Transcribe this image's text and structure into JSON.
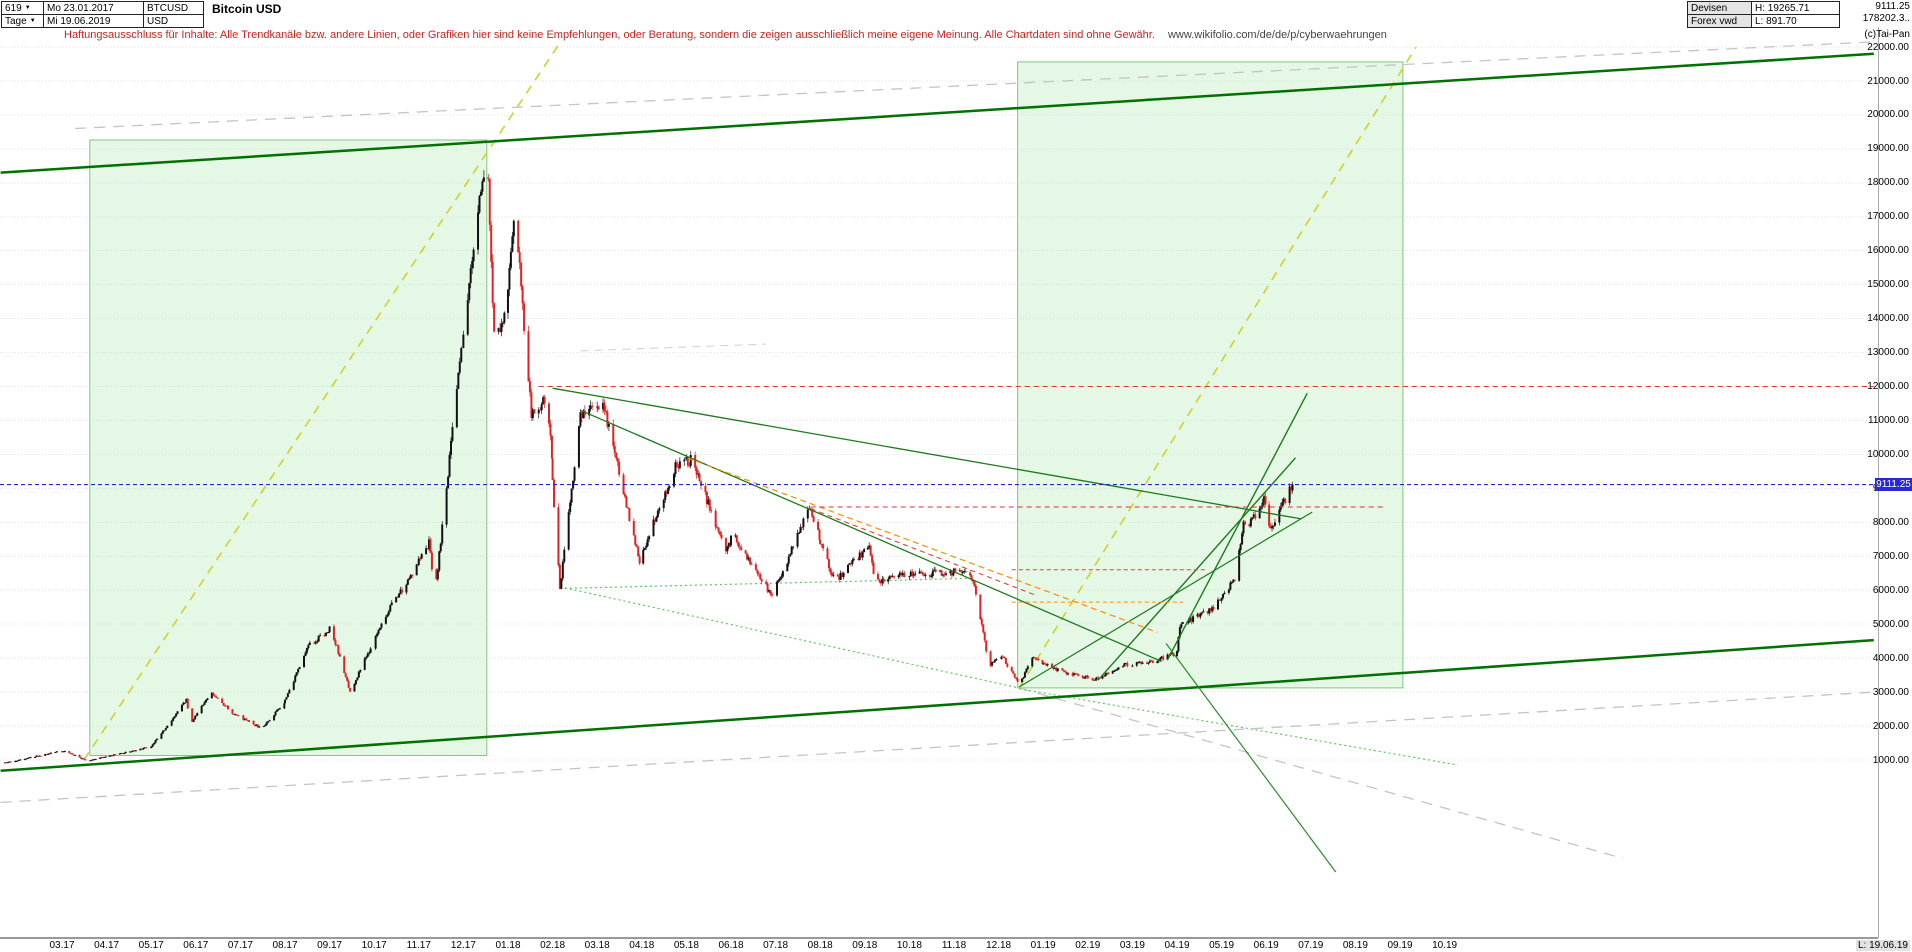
{
  "header": {
    "bars_count": "619",
    "dropdown_icon": "▼",
    "first_date": "Mo 23.01.2017",
    "period": "Tage",
    "last_date": "Mi 19.06.2019",
    "symbol": "BTCUSD",
    "currency": "USD",
    "title": "Bitcoin USD",
    "exchange": "Devisen",
    "feed": "Forex vwd",
    "high_label": "H: 19265.71",
    "low_label": "L: 891.70",
    "last_price": "9111.25",
    "second_value": "178202.3..",
    "copyright": "(c)Tai-Pan"
  },
  "disclaimer": {
    "text": "Haftungsausschluss für Inhalte: Alle Trendkanäle bzw. andere Linien, oder Grafiken hier sind keine Empfehlungen, oder Beratung, sondern die zeigen ausschließlich meine eigene Meinung. Alle Chartdaten sind ohne Gewähr.",
    "url": "www.wikifolio.com/de/de/p/cyberwaehrungen"
  },
  "axis": {
    "last_label": "L: 19.06.19"
  },
  "colors": {
    "up": "#111111",
    "down": "#e22222",
    "grid": "#e2e2e2",
    "channel": "#007000",
    "projection_dash": "#ccd42a",
    "current": "#2525cc",
    "box_fill": "rgba(170,230,170,0.30)",
    "box_stroke": "#7ec87e"
  },
  "chart_data": {
    "type": "candlestick",
    "symbol": "BTCUSD",
    "title": "Bitcoin USD",
    "period": "Tage",
    "x_range": [
      "2017-01-23",
      "2019-06-19"
    ],
    "current_price": 9111.25,
    "high": 19265.71,
    "low": 891.7,
    "ylim_labeled": [
      1000,
      22000
    ],
    "y_ticks": [
      "22000.00",
      "21000.00",
      "20000.00",
      "19000.00",
      "18000.00",
      "17000.00",
      "16000.00",
      "15000.00",
      "14000.00",
      "13000.00",
      "12000.00",
      "11000.00",
      "10000.00",
      "9000.00",
      "8000.00",
      "7000.00",
      "6000.00",
      "5000.00",
      "4000.00",
      "3000.00",
      "2000.00",
      "1000.00"
    ],
    "x_ticks": [
      "03.17",
      "04.17",
      "05.17",
      "06.17",
      "07.17",
      "08.17",
      "09.17",
      "10.17",
      "11.17",
      "12.17",
      "01.18",
      "02.18",
      "03.18",
      "04.18",
      "05.18",
      "06.18",
      "07.18",
      "08.18",
      "09.18",
      "10.18",
      "11.18",
      "12.18",
      "01.19",
      "02.19",
      "03.19",
      "04.19",
      "05.19",
      "06.19",
      "07.19",
      "08.19",
      "09.19",
      "10.19"
    ],
    "keyframes": [
      [
        "2017-01-23",
        920
      ],
      [
        "2017-02-05",
        1020
      ],
      [
        "2017-03-03",
        1280
      ],
      [
        "2017-03-18",
        970
      ],
      [
        "2017-04-10",
        1190
      ],
      [
        "2017-05-01",
        1390
      ],
      [
        "2017-05-25",
        2760
      ],
      [
        "2017-05-28",
        2080
      ],
      [
        "2017-06-12",
        2980
      ],
      [
        "2017-06-27",
        2350
      ],
      [
        "2017-07-16",
        1920
      ],
      [
        "2017-08-01",
        2750
      ],
      [
        "2017-08-17",
        4350
      ],
      [
        "2017-09-02",
        4900
      ],
      [
        "2017-09-15",
        3000
      ],
      [
        "2017-10-13",
        5600
      ],
      [
        "2017-10-21",
        6050
      ],
      [
        "2017-11-08",
        7400
      ],
      [
        "2017-11-12",
        5900
      ],
      [
        "2017-12-08",
        16200
      ],
      [
        "2017-12-17",
        19100
      ],
      [
        "2017-12-22",
        13500
      ],
      [
        "2017-12-30",
        14100
      ],
      [
        "2018-01-06",
        17150
      ],
      [
        "2018-01-17",
        11100
      ],
      [
        "2018-01-28",
        11700
      ],
      [
        "2018-02-06",
        6050
      ],
      [
        "2018-02-20",
        11200
      ],
      [
        "2018-03-05",
        11500
      ],
      [
        "2018-03-30",
        6850
      ],
      [
        "2018-04-24",
        9650
      ],
      [
        "2018-05-05",
        9850
      ],
      [
        "2018-05-28",
        7100
      ],
      [
        "2018-06-02",
        7650
      ],
      [
        "2018-06-29",
        5850
      ],
      [
        "2018-07-24",
        8400
      ],
      [
        "2018-08-11",
        6250
      ],
      [
        "2018-09-04",
        7350
      ],
      [
        "2018-09-08",
        6250
      ],
      [
        "2018-09-25",
        6450
      ],
      [
        "2018-10-15",
        6500
      ],
      [
        "2018-11-07",
        6550
      ],
      [
        "2018-11-14",
        6350
      ],
      [
        "2018-11-25",
        3800
      ],
      [
        "2018-12-03",
        4100
      ],
      [
        "2018-12-15",
        3200
      ],
      [
        "2018-12-24",
        4000
      ],
      [
        "2019-01-10",
        3650
      ],
      [
        "2019-01-28",
        3450
      ],
      [
        "2019-02-08",
        3400
      ],
      [
        "2019-02-24",
        3800
      ],
      [
        "2019-03-15",
        3900
      ],
      [
        "2019-04-01",
        4150
      ],
      [
        "2019-04-03",
        4950
      ],
      [
        "2019-04-25",
        5450
      ],
      [
        "2019-05-10",
        6350
      ],
      [
        "2019-05-16",
        7900
      ],
      [
        "2019-05-20",
        7950
      ],
      [
        "2019-05-30",
        8650
      ],
      [
        "2019-06-04",
        7700
      ],
      [
        "2019-06-16",
        8900
      ],
      [
        "2019-06-19",
        9111.25
      ]
    ],
    "boxes": [
      {
        "name": "bull-run-2017-box",
        "d1": "2017-03-20",
        "v1": 1130,
        "d2": "2017-12-17",
        "v2": 19260,
        "fill": "rgba(170,230,170,0.30)",
        "stroke": "#7ec87e"
      },
      {
        "name": "projected-run-2019-box",
        "d1": "2018-12-14",
        "v1": 3120,
        "d2": "2019-09-03",
        "v2": 21560,
        "fill": "rgba(170,230,170,0.30)",
        "stroke": "#7ec87e"
      }
    ],
    "annotations": [
      {
        "name": "channel-top",
        "d1": "2017-01-20",
        "v1": 18300,
        "d2": "2020-07-20",
        "v2": 21800,
        "color": "#007000",
        "w": 2.5,
        "dash": null,
        "layer": "above"
      },
      {
        "name": "channel-bottom",
        "d1": "2017-01-20",
        "v1": 680,
        "d2": "2020-07-20",
        "v2": 4530,
        "color": "#007000",
        "w": 2.5,
        "dash": null,
        "layer": "above"
      },
      {
        "name": "bull-diagonal-2017",
        "d1": "2017-03-16",
        "v1": 1000,
        "d2": "2018-02-05",
        "v2": 22060,
        "color": "#ccd42a",
        "w": 1.6,
        "dash": "9,7",
        "layer": "below"
      },
      {
        "name": "bull-diagonal-2019-projection",
        "d1": "2018-12-15",
        "v1": 3120,
        "d2": "2019-09-12",
        "v2": 22000,
        "color": "#ccd42a",
        "w": 1.6,
        "dash": "9,7",
        "layer": "below"
      },
      {
        "name": "gray-dashed-top",
        "d1": "2017-03-10",
        "v1": 19600,
        "d2": "2020-07-20",
        "v2": 22150,
        "color": "#c4c4c4",
        "w": 1.3,
        "dash": "11,8",
        "layer": "below"
      },
      {
        "name": "gray-dashed-bottom",
        "d1": "2017-01-20",
        "v1": -250,
        "d2": "2020-07-20",
        "v2": 3000,
        "color": "#c4c4c4",
        "w": 1.3,
        "dash": "11,8",
        "layer": "below"
      },
      {
        "name": "gray-dashed-mid",
        "d1": "2018-02-20",
        "v1": 13050,
        "d2": "2018-06-25",
        "v2": 13250,
        "color": "#d0d0d0",
        "w": 1,
        "dash": "8,6",
        "layer": "below"
      },
      {
        "name": "gray-dashed-bottom-right",
        "d1": "2018-12-15",
        "v1": 3120,
        "d2": "2020-02-01",
        "v2": -1900,
        "color": "#c4c4c4",
        "w": 1.3,
        "dash": "11,8",
        "layer": "below"
      },
      {
        "name": "green-dotted-descending",
        "d1": "2018-02-06",
        "v1": 6100,
        "d2": "2018-12-15",
        "v2": 3120,
        "color": "#55cc55",
        "w": 1.2,
        "dash": "2,3",
        "layer": "below"
      },
      {
        "name": "green-dotted-flat-support",
        "d1": "2018-02-06",
        "v1": 6050,
        "d2": "2018-11-14",
        "v2": 6350,
        "color": "#55cc55",
        "w": 1.2,
        "dash": "2,3",
        "layer": "below"
      },
      {
        "name": "green-dotted-bottom-right",
        "d1": "2018-12-15",
        "v1": 3100,
        "d2": "2019-10-10",
        "v2": 850,
        "color": "#55cc55",
        "w": 1.2,
        "dash": "2,3",
        "layer": "below"
      },
      {
        "name": "descending-green-shallow",
        "d1": "2018-02-01",
        "v1": 11950,
        "d2": "2019-06-25",
        "v2": 8100,
        "color": "#1b7a1b",
        "w": 1.3,
        "dash": null,
        "layer": "above"
      },
      {
        "name": "descending-green-steep",
        "d1": "2018-02-20",
        "v1": 11300,
        "d2": "2019-03-21",
        "v2": 3900,
        "color": "#1b7a1b",
        "w": 1.3,
        "dash": null,
        "layer": "above"
      },
      {
        "name": "rising-2019-support-long",
        "d1": "2018-12-15",
        "v1": 3150,
        "d2": "2019-07-02",
        "v2": 8300,
        "color": "#1b7a1b",
        "w": 1.2,
        "dash": null,
        "layer": "above"
      },
      {
        "name": "rising-2019-support-steep",
        "d1": "2019-02-08",
        "v1": 3350,
        "d2": "2019-06-21",
        "v2": 9900,
        "color": "#1b7a1b",
        "w": 1.4,
        "dash": null,
        "layer": "above"
      },
      {
        "name": "rising-2019-support-steeper",
        "d1": "2019-03-25",
        "v1": 3950,
        "d2": "2019-06-29",
        "v2": 11800,
        "color": "#1b7a1b",
        "w": 1.4,
        "dash": null,
        "layer": "above"
      },
      {
        "name": "falling-line-bottom-right",
        "d1": "2019-03-24",
        "v1": 4430,
        "d2": "2019-07-18",
        "v2": -2300,
        "color": "#2e8b2e",
        "w": 1.2,
        "dash": null,
        "layer": "above"
      },
      {
        "name": "orange-descending",
        "d1": "2018-05-02",
        "v1": 9890,
        "d2": "2019-03-18",
        "v2": 4760,
        "color": "#ff8c00",
        "w": 1.2,
        "dash": "6,4",
        "layer": "above"
      },
      {
        "name": "red-descending",
        "d1": "2018-07-25",
        "v1": 8400,
        "d2": "2018-12-26",
        "v2": 5860,
        "color": "#e03030",
        "w": 1,
        "dash": "5,4",
        "layer": "above"
      },
      {
        "name": "red-resistance-12000",
        "d1": "2018-01-22",
        "v1": 12000,
        "d2": "2020-07-20",
        "v2": 12000,
        "color": "#e03030",
        "w": 1,
        "dash": "5,4",
        "layer": "above"
      },
      {
        "name": "red-resistance-8450",
        "d1": "2018-07-25",
        "v1": 8450,
        "d2": "2019-08-20",
        "v2": 8450,
        "color": "#e03030",
        "w": 1,
        "dash": "5,4",
        "layer": "above"
      },
      {
        "name": "red-level-6600",
        "d1": "2018-12-10",
        "v1": 6600,
        "d2": "2019-04-20",
        "v2": 6600,
        "color": "#e04040",
        "w": 1,
        "dash": "4,3",
        "layer": "above"
      },
      {
        "name": "orange-level-5650",
        "d1": "2018-12-10",
        "v1": 5650,
        "d2": "2019-04-05",
        "v2": 5650,
        "color": "#ff8c00",
        "w": 1,
        "dash": "4,3",
        "layer": "above"
      },
      {
        "name": "current-price-line",
        "full": true,
        "v": 9111.25,
        "color": "#2525cc",
        "w": 1.1,
        "dash": "4,3",
        "layer": "above"
      }
    ]
  }
}
